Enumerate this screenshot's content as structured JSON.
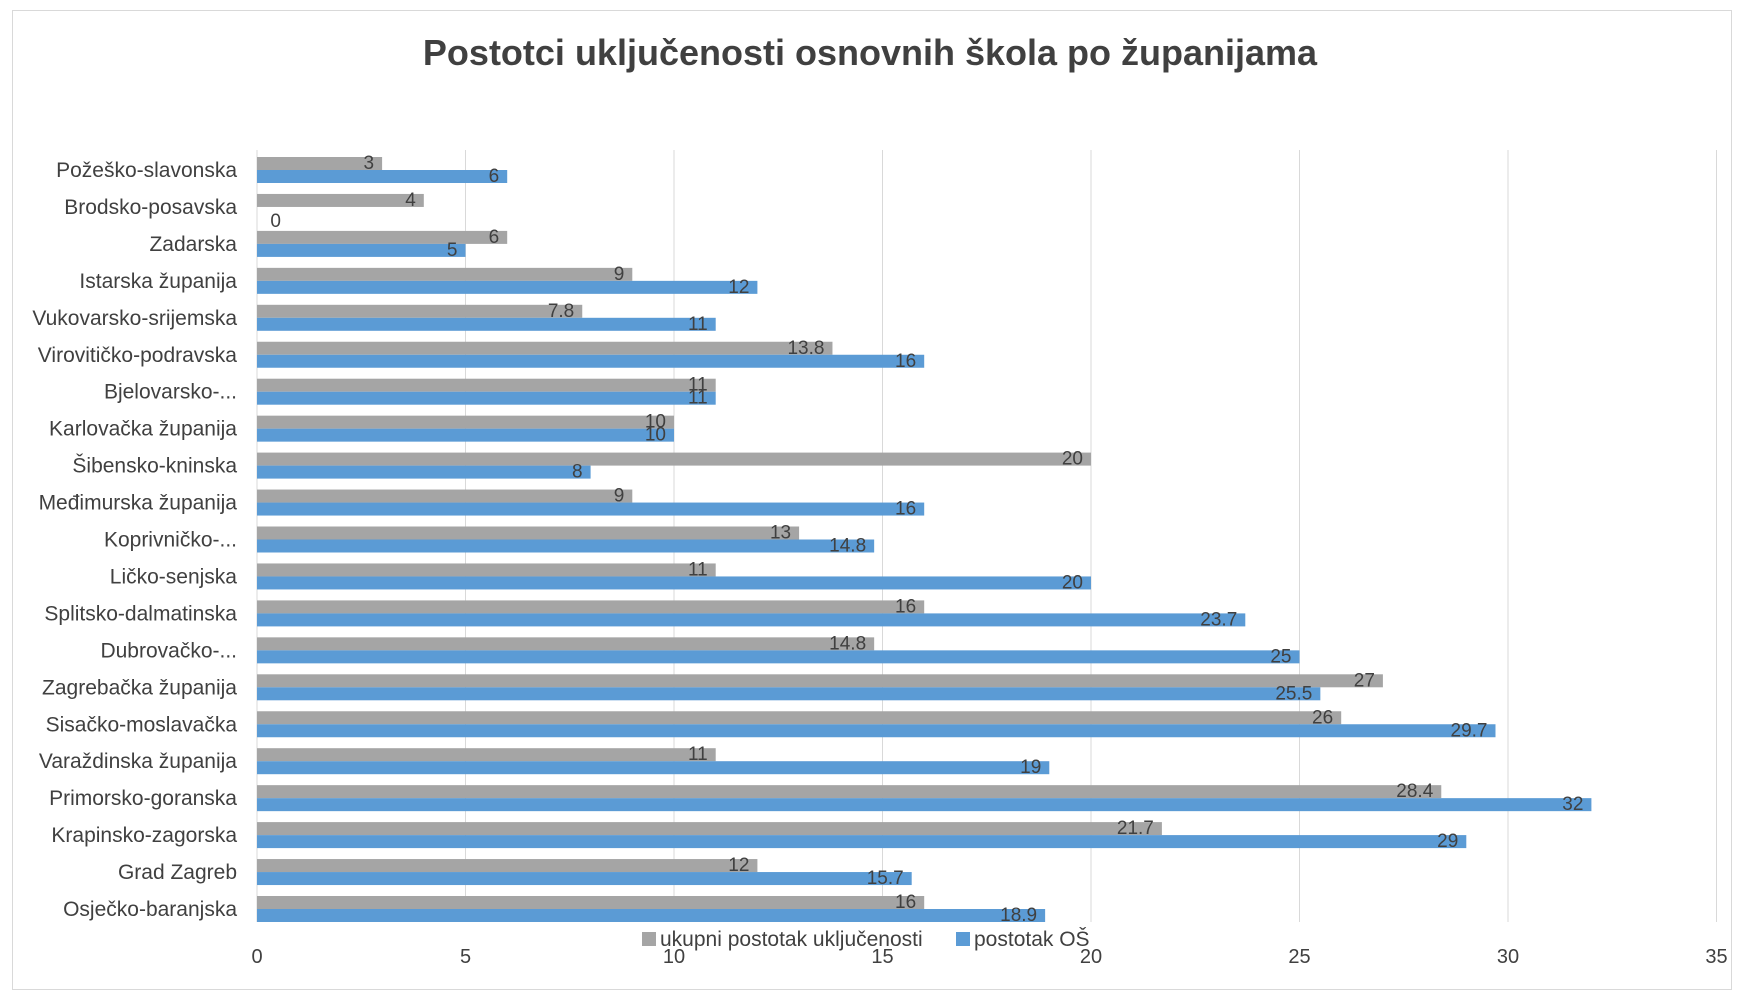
{
  "chart_data": {
    "type": "bar",
    "orientation": "horizontal",
    "title": "Postotci uključenosti osnovnih škola po županijama",
    "xlim": [
      0,
      35
    ],
    "x_ticks": [
      "0",
      "5",
      "10",
      "15",
      "20",
      "25",
      "30",
      "35"
    ],
    "grid": true,
    "legend_position": "bottom",
    "categories": [
      "Požeško-slavonska",
      "Brodsko-posavska",
      "Zadarska",
      "Istarska županija",
      "Vukovarsko-srijemska",
      "Virovitičko-podravska",
      "Bjelovarsko-...",
      "Karlovačka županija",
      "Šibensko-kninska",
      "Međimurska županija",
      "Koprivničko-...",
      "Ličko-senjska",
      "Splitsko-dalmatinska",
      "Dubrovačko-...",
      "Zagrebačka županija",
      "Sisačko-moslavačka",
      "Varaždinska županija",
      "Primorsko-goranska",
      "Krapinsko-zagorska",
      "Grad Zagreb",
      "Osječko-baranjska"
    ],
    "series": [
      {
        "name": "ukupni postotak uključenosti",
        "color": "#a5a5a5",
        "values": [
          3,
          4,
          6,
          9,
          7.8,
          13.8,
          11,
          10,
          20,
          9,
          13,
          11,
          16,
          14.8,
          27,
          26,
          11,
          28.4,
          21.7,
          12,
          16
        ]
      },
      {
        "name": "postotak OŠ",
        "color": "#5b9bd5",
        "values": [
          6,
          0,
          5,
          12,
          11,
          16,
          11,
          10,
          8,
          16,
          14.8,
          20,
          23.7,
          25,
          25.5,
          29.7,
          19,
          32,
          29,
          15.7,
          18.9
        ]
      }
    ]
  }
}
